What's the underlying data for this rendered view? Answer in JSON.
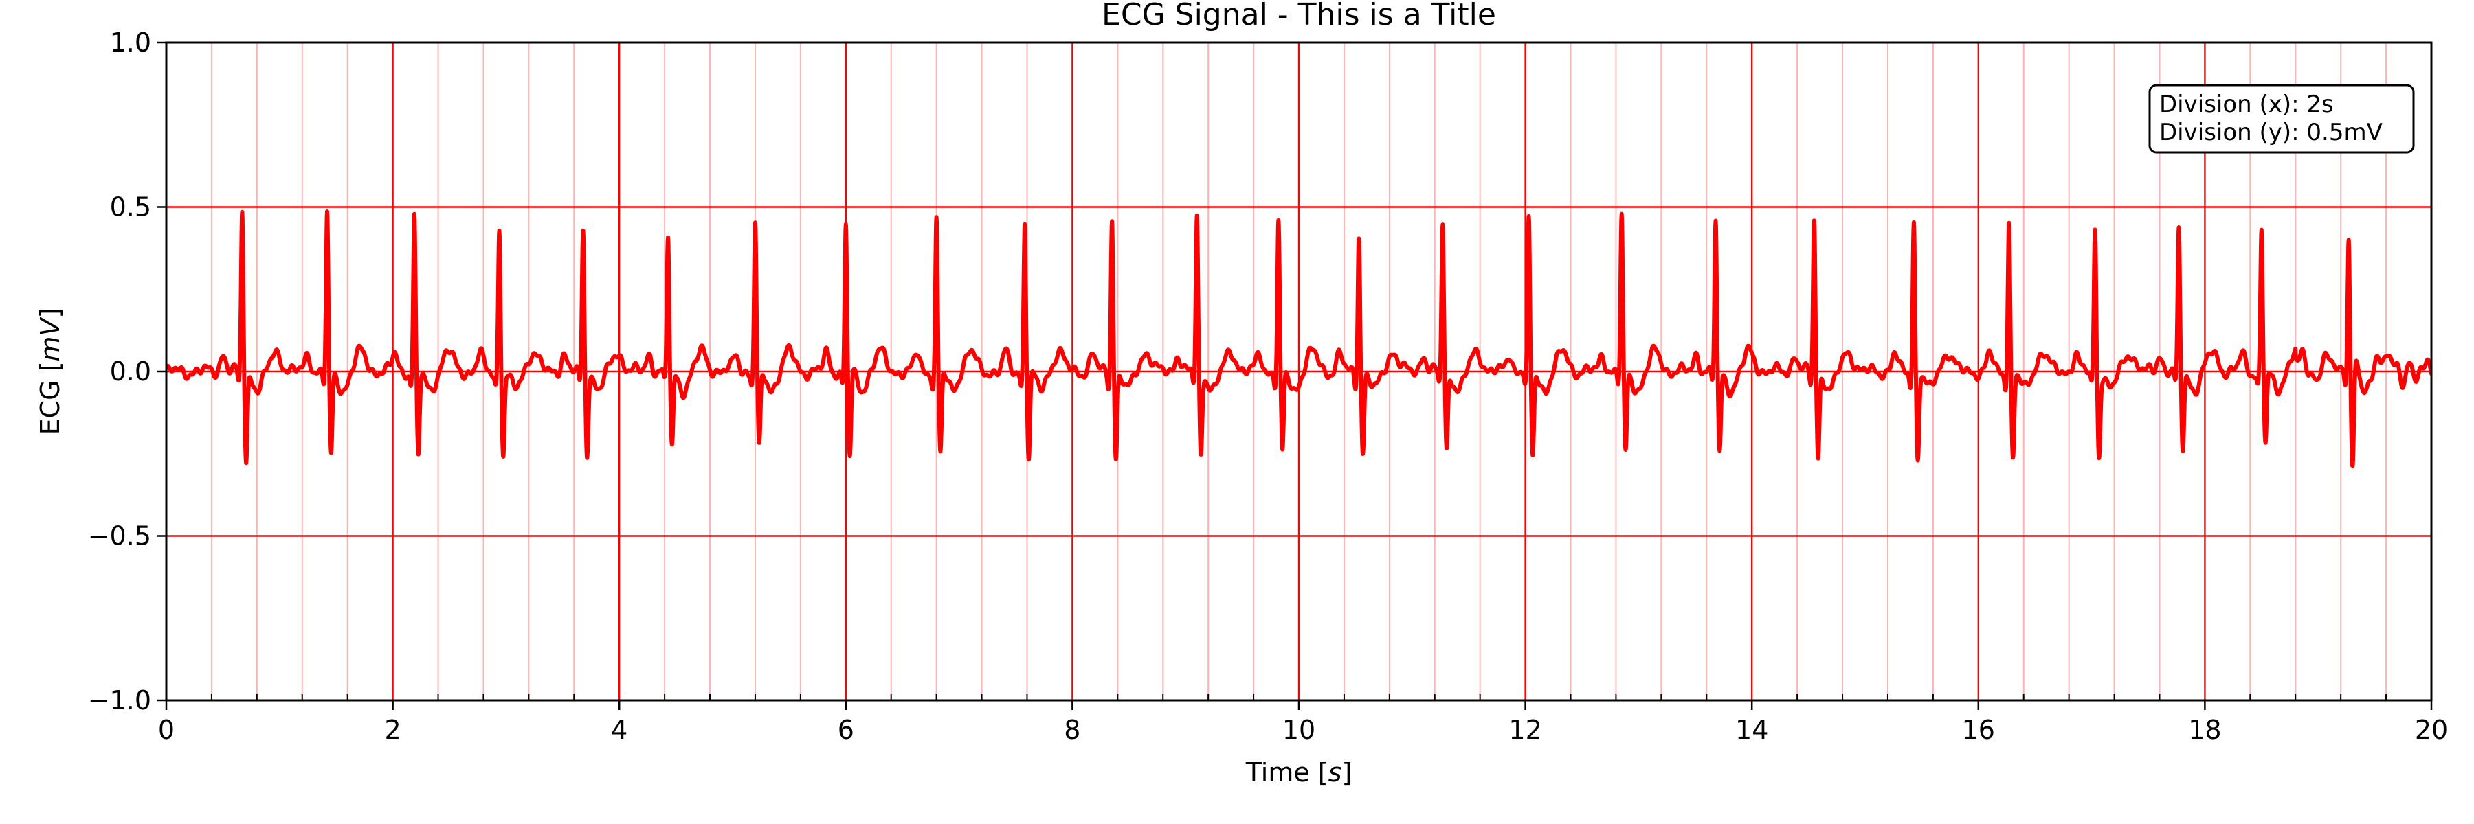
{
  "chart_data": {
    "type": "line",
    "title": "ECG Signal - This is a Title",
    "xlabel_text": "Time ",
    "xlabel_unit": "s",
    "ylabel_text": "ECG ",
    "ylabel_unit": "mV",
    "xlim": [
      0,
      20
    ],
    "ylim": [
      -1.0,
      1.0
    ],
    "x_ticks": [
      0,
      2,
      4,
      6,
      8,
      10,
      12,
      14,
      16,
      18,
      20
    ],
    "x_tick_labels": [
      "0",
      "2",
      "4",
      "6",
      "8",
      "10",
      "12",
      "14",
      "16",
      "18",
      "20"
    ],
    "y_ticks": [
      -1.0,
      -0.5,
      0.0,
      0.5,
      1.0
    ],
    "y_tick_labels": [
      "−1.0",
      "−0.5",
      "0.0",
      "0.5",
      "1.0"
    ],
    "major_grid_x_step": 2,
    "minor_grid_x_step": 0.4,
    "major_grid_y_step": 0.5,
    "grid": true,
    "grid_color": "#ff0000",
    "line_color": "#ff0000",
    "annotation": {
      "lines": [
        "Division (x): 2s",
        "Division (y): 0.5mV"
      ],
      "placement": "top-right"
    },
    "series": [
      {
        "beats": [
          {
            "t": 0.67,
            "r": 0.46,
            "s": -0.27
          },
          {
            "t": 1.42,
            "r": 0.45,
            "s": -0.26
          },
          {
            "t": 2.19,
            "r": 0.44,
            "s": -0.26
          },
          {
            "t": 2.94,
            "r": 0.41,
            "s": -0.25
          },
          {
            "t": 3.68,
            "r": 0.4,
            "s": -0.24
          },
          {
            "t": 4.43,
            "r": 0.38,
            "s": -0.23
          },
          {
            "t": 5.2,
            "r": 0.42,
            "s": -0.24
          },
          {
            "t": 6.0,
            "r": 0.42,
            "s": -0.26
          },
          {
            "t": 6.8,
            "r": 0.43,
            "s": -0.25
          },
          {
            "t": 7.58,
            "r": 0.43,
            "s": -0.26
          },
          {
            "t": 8.35,
            "r": 0.44,
            "s": -0.26
          },
          {
            "t": 9.1,
            "r": 0.44,
            "s": -0.25
          },
          {
            "t": 9.82,
            "r": 0.42,
            "s": -0.25
          },
          {
            "t": 10.53,
            "r": 0.39,
            "s": -0.24
          },
          {
            "t": 11.27,
            "r": 0.42,
            "s": -0.24
          },
          {
            "t": 12.03,
            "r": 0.42,
            "s": -0.26
          },
          {
            "t": 12.85,
            "r": 0.44,
            "s": -0.25
          },
          {
            "t": 13.68,
            "r": 0.43,
            "s": -0.25
          },
          {
            "t": 14.55,
            "r": 0.43,
            "s": -0.26
          },
          {
            "t": 15.43,
            "r": 0.43,
            "s": -0.26
          },
          {
            "t": 16.27,
            "r": 0.43,
            "s": -0.26
          },
          {
            "t": 17.03,
            "r": 0.41,
            "s": -0.25
          },
          {
            "t": 17.77,
            "r": 0.39,
            "s": -0.23
          },
          {
            "t": 18.5,
            "r": 0.4,
            "s": -0.22
          },
          {
            "t": 19.27,
            "r": 0.42,
            "s": -0.28
          }
        ]
      }
    ]
  }
}
